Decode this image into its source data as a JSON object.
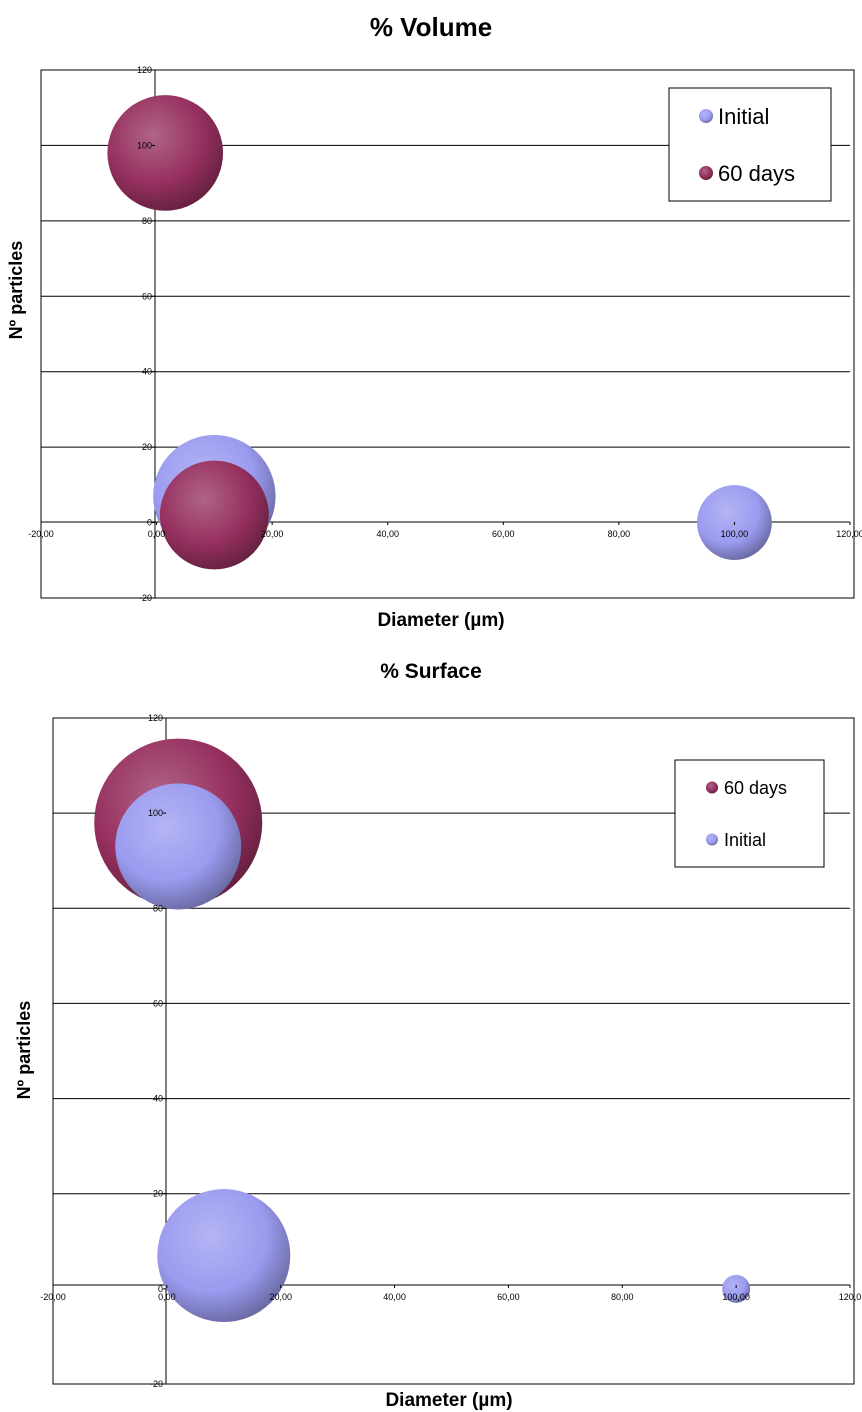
{
  "chart_data": [
    {
      "type": "bubble",
      "title": "% Volume",
      "xlabel": "Diameter (µm)",
      "ylabel": "Nº particles",
      "xlim": [
        -20,
        120
      ],
      "ylim": [
        -20,
        120
      ],
      "x_ticks": [
        "-20,00",
        "0,00",
        "20,00",
        "40,00",
        "60,00",
        "80,00",
        "100,00",
        "120,00"
      ],
      "y_ticks": [
        "-20",
        "0",
        "20",
        "40",
        "60",
        "80",
        "100",
        "120"
      ],
      "grid": "horizontal",
      "legend_position": "top-right",
      "series": [
        {
          "name": "Initial",
          "color": "#9b9bf0",
          "points": [
            {
              "x": 10,
              "y": 7,
              "size": 18
            },
            {
              "x": 100,
              "y": 0,
              "size": 11
            }
          ]
        },
        {
          "name": "60 days",
          "color": "#96305f",
          "points": [
            {
              "x": 1.5,
              "y": 98,
              "size": 17
            },
            {
              "x": 10,
              "y": 2,
              "size": 16
            }
          ]
        }
      ],
      "legend_order": [
        "Initial",
        "60 days"
      ]
    },
    {
      "type": "bubble",
      "title": "% Surface",
      "xlabel": "Diameter (µm)",
      "ylabel": "Nº particles",
      "xlim": [
        -20,
        120
      ],
      "ylim": [
        -20,
        120
      ],
      "x_ticks": [
        "-20,00",
        "0,00",
        "20,00",
        "40,00",
        "60,00",
        "80,00",
        "100,00",
        "120,0"
      ],
      "y_ticks": [
        "-20",
        "0",
        "20",
        "40",
        "60",
        "80",
        "100",
        "120"
      ],
      "grid": "horizontal",
      "legend_position": "top-right",
      "series": [
        {
          "name": "60 days",
          "color": "#96305f",
          "points": [
            {
              "x": 2,
              "y": 98,
              "size": 24
            },
            {
              "x": 10,
              "y": 0,
              "size": 9
            }
          ]
        },
        {
          "name": "Initial",
          "color": "#9b9bf0",
          "points": [
            {
              "x": 2,
              "y": 93,
              "size": 18
            },
            {
              "x": 10,
              "y": 7,
              "size": 19
            },
            {
              "x": 100,
              "y": 0,
              "size": 4
            }
          ]
        }
      ],
      "legend_order": [
        "60 days",
        "Initial"
      ]
    }
  ]
}
